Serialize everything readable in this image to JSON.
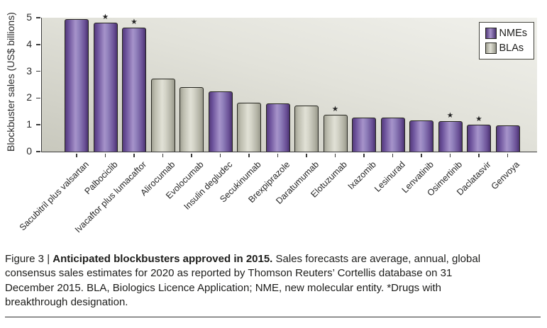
{
  "chart_data": {
    "type": "bar",
    "ylabel": "Blockbuster sales (US$ billions)",
    "ylim": [
      0,
      5
    ],
    "yticks": [
      0,
      1,
      2,
      3,
      4,
      5
    ],
    "grid": false,
    "legend_position": "top-right",
    "star_marker": "★",
    "star_meaning": "Drugs with breakthrough designation",
    "items": [
      {
        "label": "Sacubitril plus valsartan",
        "value": 4.95,
        "type": "NME",
        "star": false
      },
      {
        "label": "Palbociclib",
        "value": 4.82,
        "type": "NME",
        "star": true
      },
      {
        "label": "Ivacaftor plus lumacaftor",
        "value": 4.63,
        "type": "NME",
        "star": true
      },
      {
        "label": "Alirocumab",
        "value": 2.73,
        "type": "BLA",
        "star": false
      },
      {
        "label": "Evolocumab",
        "value": 2.42,
        "type": "BLA",
        "star": false
      },
      {
        "label": "Insulin degludec",
        "value": 2.25,
        "type": "NME",
        "star": false
      },
      {
        "label": "Secukinumab",
        "value": 1.83,
        "type": "BLA",
        "star": false
      },
      {
        "label": "Brexpiprazole",
        "value": 1.8,
        "type": "NME",
        "star": false
      },
      {
        "label": "Daratumumab",
        "value": 1.73,
        "type": "BLA",
        "star": false
      },
      {
        "label": "Elotuzumab",
        "value": 1.38,
        "type": "BLA",
        "star": true
      },
      {
        "label": "Ixazomib",
        "value": 1.28,
        "type": "NME",
        "star": false
      },
      {
        "label": "Lesinurad",
        "value": 1.26,
        "type": "NME",
        "star": false
      },
      {
        "label": "Lenvatinib",
        "value": 1.17,
        "type": "NME",
        "star": false
      },
      {
        "label": "Osimertinib",
        "value": 1.14,
        "type": "NME",
        "star": true
      },
      {
        "label": "Daclatasvir",
        "value": 1.0,
        "type": "NME",
        "star": true
      },
      {
        "label": "Genvoya",
        "value": 0.98,
        "type": "NME",
        "star": false
      }
    ]
  },
  "legend": {
    "items": [
      {
        "label": "NMEs",
        "type": "NME"
      },
      {
        "label": "BLAs",
        "type": "BLA"
      }
    ]
  },
  "colors": {
    "nme_purple": "#6f55a0",
    "bla_grey": "#c9c9bb",
    "axis": "#3a3a3a",
    "plot_bg_light": "#f1f1ec",
    "plot_bg_dark": "#c8c8bd"
  },
  "caption": {
    "prefix": "Figure 3 | ",
    "title_bold": "Anticipated blockbusters approved in 2015.",
    "body": " Sales forecasts are average, annual, global consensus sales estimates for 2020 as reported by Thomson Reuters’ Cortellis database on 31 December 2015. BLA, Biologics Licence Application; NME, new molecular entity. *Drugs with breakthrough designation."
  }
}
